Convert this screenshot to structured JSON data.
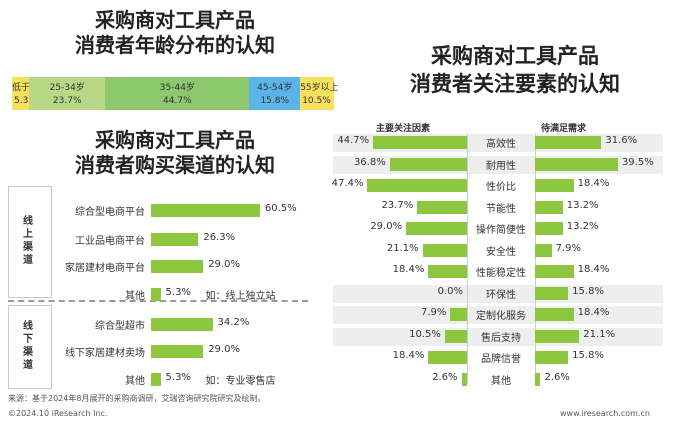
{
  "chart_data": [
    {
      "type": "bar",
      "title_lines": [
        "采购商对工具产品",
        "消费者年龄分布的认知"
      ],
      "segments": [
        {
          "label": "低于25岁",
          "value": 5.3,
          "value_text": "5.3%",
          "color": "#f5e15a"
        },
        {
          "label": "25-34岁",
          "value": 23.7,
          "value_text": "23.7%",
          "color": "#b8d888"
        },
        {
          "label": "35-44岁",
          "value": 44.7,
          "value_text": "44.7%",
          "color": "#8dc86e"
        },
        {
          "label": "45-54岁",
          "value": 15.8,
          "value_text": "15.8%",
          "color": "#5ab4e8"
        },
        {
          "label": "55岁以上",
          "value": 10.5,
          "value_text": "10.5%",
          "color": "#f7e05c"
        }
      ]
    },
    {
      "type": "bar",
      "title_lines": [
        "采购商对工具产品",
        "消费者购买渠道的认知"
      ],
      "groups": [
        {
          "label": "线上渠道",
          "items": [
            {
              "category": "综合型电商平台",
              "value": 60.5,
              "value_text": "60.5%",
              "note": ""
            },
            {
              "category": "工业品电商平台",
              "value": 26.3,
              "value_text": "26.3%",
              "note": ""
            },
            {
              "category": "家居建材电商平台",
              "value": 29.0,
              "value_text": "29.0%",
              "note": ""
            },
            {
              "category": "其他",
              "value": 5.3,
              "value_text": "5.3%",
              "note": "如：线上独立站"
            }
          ]
        },
        {
          "label": "线下渠道",
          "items": [
            {
              "category": "综合型超市",
              "value": 34.2,
              "value_text": "34.2%",
              "note": ""
            },
            {
              "category": "线下家居建材卖场",
              "value": 29.0,
              "value_text": "29.0%",
              "note": ""
            },
            {
              "category": "其他",
              "value": 5.3,
              "value_text": "5.3%",
              "note": "如：专业零售店"
            }
          ]
        }
      ]
    },
    {
      "type": "bar",
      "title_lines": [
        "采购商对工具产品",
        "消费者关注要素的认知"
      ],
      "left_header": "主要关注因素",
      "right_header": "待满足需求",
      "categories": [
        "高效性",
        "耐用性",
        "性价比",
        "节能性",
        "操作简便性",
        "安全性",
        "性能稳定性",
        "环保性",
        "定制化服务",
        "售后支持",
        "品牌信誉",
        "其他"
      ],
      "series": [
        {
          "name": "主要关注因素",
          "values": [
            44.7,
            36.8,
            47.4,
            23.7,
            29.0,
            21.1,
            18.4,
            0.0,
            7.9,
            10.5,
            18.4,
            2.6
          ],
          "value_texts": [
            "44.7%",
            "36.8%",
            "47.4%",
            "23.7%",
            "29.0%",
            "21.1%",
            "18.4%",
            "0.0%",
            "7.9%",
            "10.5%",
            "18.4%",
            "2.6%"
          ]
        },
        {
          "name": "待满足需求",
          "values": [
            31.6,
            39.5,
            18.4,
            13.2,
            13.2,
            7.9,
            18.4,
            15.8,
            18.4,
            21.1,
            15.8,
            2.6
          ],
          "value_texts": [
            "31.6%",
            "39.5%",
            "18.4%",
            "13.2%",
            "13.2%",
            "7.9%",
            "18.4%",
            "15.8%",
            "18.4%",
            "21.1%",
            "15.8%",
            "2.6%"
          ]
        }
      ],
      "shaded_rows": [
        0,
        1,
        7,
        8,
        9
      ]
    }
  ],
  "footer": {
    "source": "来源：基于2024年8月展开的采购商调研，艾瑞咨询研究院研究及绘制。",
    "copyright": "©2024.10 iResearch Inc.",
    "website": "www.iresearch.com.cn"
  }
}
